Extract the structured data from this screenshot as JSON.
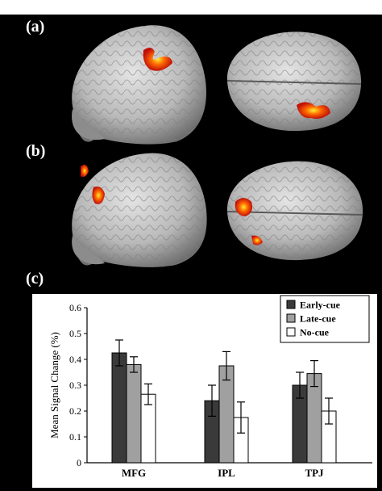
{
  "panels": {
    "a": "(a)",
    "b": "(b)",
    "c": "(c)"
  },
  "colors": {
    "early": "#3a3a3a",
    "late": "#a0a0a0",
    "none": "#ffffff",
    "activation_core": "#ffee33",
    "activation_mid": "#ff6a00",
    "activation_edge": "#c0100a"
  },
  "chart_data": {
    "type": "bar",
    "categories": [
      "MFG",
      "IPL",
      "TPJ"
    ],
    "series": [
      {
        "name": "Early-cue",
        "values": [
          0.425,
          0.24,
          0.3
        ],
        "errors": [
          0.05,
          0.06,
          0.05
        ],
        "color": "#3a3a3a"
      },
      {
        "name": "Late-cue",
        "values": [
          0.38,
          0.375,
          0.345
        ],
        "errors": [
          0.03,
          0.055,
          0.05
        ],
        "color": "#a0a0a0"
      },
      {
        "name": "No-cue",
        "values": [
          0.265,
          0.175,
          0.2
        ],
        "errors": [
          0.04,
          0.06,
          0.05
        ],
        "color": "#ffffff"
      }
    ],
    "ylabel": "Mean Signal Change (%)",
    "ylim": [
      0,
      0.6
    ],
    "yticks": [
      "0",
      "0.1",
      "0.2",
      "0.3",
      "0.4",
      "0.5",
      "0.6"
    ],
    "legend_position": "top-right",
    "grid": false
  }
}
